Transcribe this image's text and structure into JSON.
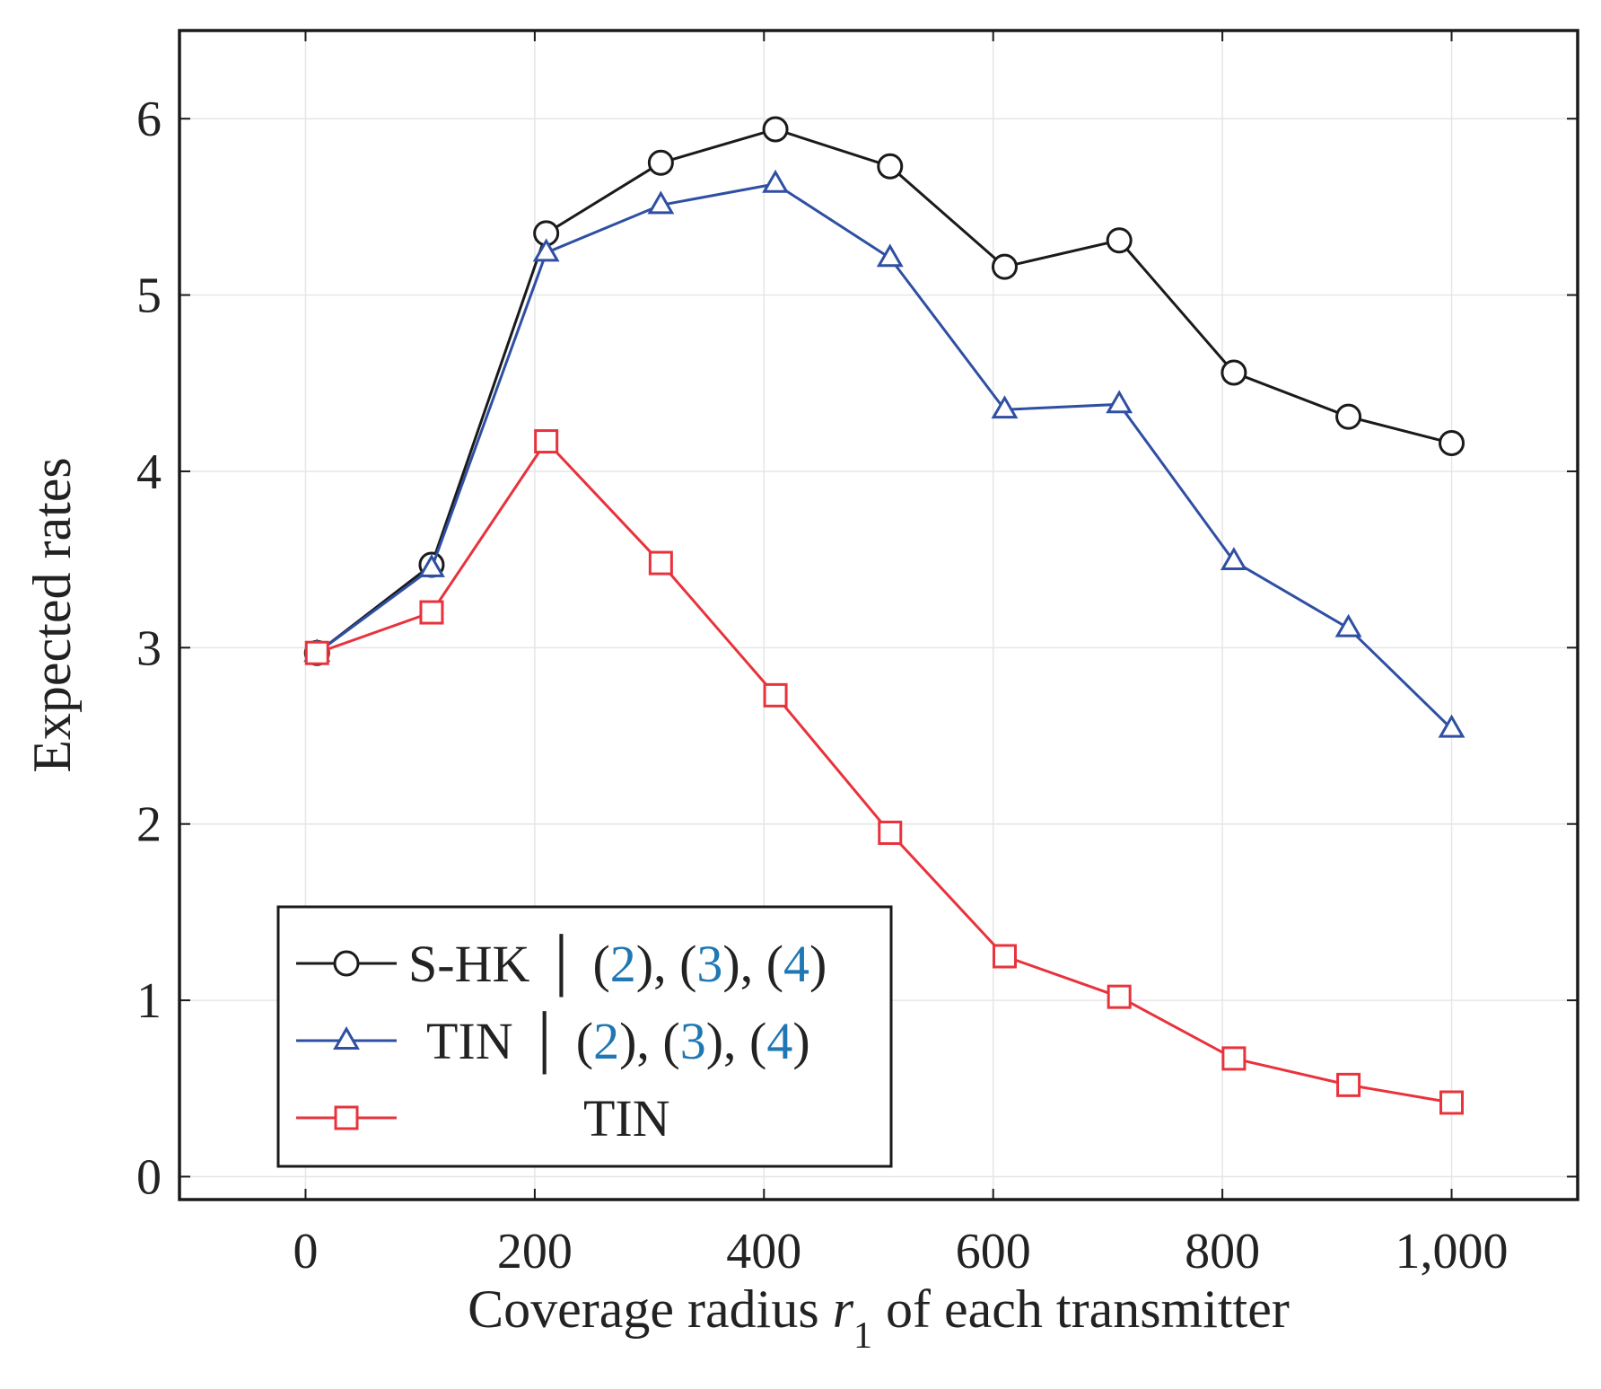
{
  "chart_data": {
    "type": "line",
    "xlabel": "Coverage radius ",
    "xlabel_var": "r",
    "xlabel_sub": "1",
    "xlabel_rest": " of each transmitter",
    "ylabel": "Expected rates",
    "xlim": [
      -110,
      1110
    ],
    "ylim": [
      -0.13,
      6.5
    ],
    "xticks": [
      0,
      200,
      400,
      600,
      800,
      1000
    ],
    "xtick_labels": [
      "0",
      "200",
      "400",
      "600",
      "800",
      "1,000"
    ],
    "yticks": [
      0,
      1,
      2,
      3,
      4,
      5,
      6
    ],
    "ytick_labels": [
      "0",
      "1",
      "2",
      "3",
      "4",
      "5",
      "6"
    ],
    "grid": true,
    "legend_position": "bottom-left",
    "x": [
      10,
      110,
      210,
      310,
      410,
      510,
      610,
      710,
      810,
      910,
      1000
    ],
    "series": [
      {
        "marker": "circle",
        "color": "#1a1a1a",
        "values": [
          2.97,
          3.47,
          5.35,
          5.75,
          5.94,
          5.73,
          5.16,
          5.31,
          4.56,
          4.31,
          4.16
        ],
        "legend": {
          "name": "S-HK",
          "refs_prefix": "(",
          "ref1": "2",
          "sep1": "), (",
          "ref2": "3",
          "sep2": "), (",
          "ref3": "4",
          "refs_suffix": ")"
        }
      },
      {
        "marker": "triangle",
        "color": "#2f4fa3",
        "values": [
          2.97,
          3.45,
          5.24,
          5.51,
          5.63,
          5.21,
          4.35,
          4.38,
          3.49,
          3.11,
          2.54
        ],
        "legend": {
          "name": "TIN",
          "refs_prefix": "(",
          "ref1": "2",
          "sep1": "), (",
          "ref2": "3",
          "sep2": "), (",
          "ref3": "4",
          "refs_suffix": ")"
        }
      },
      {
        "marker": "square",
        "color": "#e8323c",
        "values": [
          2.97,
          3.2,
          4.17,
          3.48,
          2.73,
          1.95,
          1.25,
          1.02,
          0.67,
          0.52,
          0.42
        ],
        "legend": {
          "name": "TIN"
        }
      }
    ],
    "ref_color": "#1f77b4"
  }
}
